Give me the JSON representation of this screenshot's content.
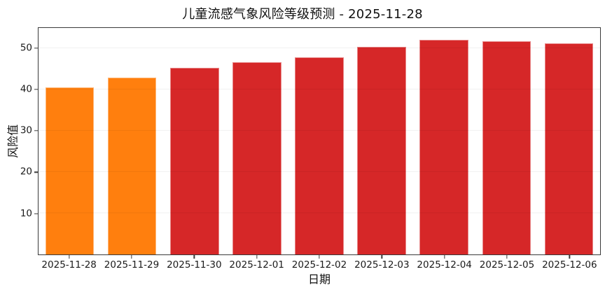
{
  "title": "儿童流感气象风险等级预测 - 2025-11-28",
  "axis": {
    "xlabel": "日期",
    "ylabel": "风险值"
  },
  "colors": {
    "low_risk_orange": "#ff7f0e",
    "high_risk_red": "#d62728",
    "spine": "#3a3a3a",
    "grid": "#ededed",
    "text": "#1a1a1a",
    "background": "#ffffff"
  },
  "chart_data": {
    "type": "bar",
    "title": "儿童流感气象风险等级预测 - 2025-11-28",
    "xlabel": "日期",
    "ylabel": "风险值",
    "categories": [
      "2025-11-28",
      "2025-11-29",
      "2025-11-30",
      "2025-12-01",
      "2025-12-02",
      "2025-12-03",
      "2025-12-04",
      "2025-12-05",
      "2025-12-06"
    ],
    "values": [
      40.5,
      43.0,
      45.4,
      46.6,
      47.8,
      50.5,
      52.1,
      51.8,
      51.2
    ],
    "bar_colors": [
      "#ff7f0e",
      "#ff7f0e",
      "#d62728",
      "#d62728",
      "#d62728",
      "#d62728",
      "#d62728",
      "#d62728",
      "#d62728"
    ],
    "ylim": [
      0,
      55
    ],
    "yticks": [
      10,
      20,
      30,
      40,
      50
    ],
    "grid": true,
    "grid_axis": "y",
    "legend": false,
    "box": true
  }
}
